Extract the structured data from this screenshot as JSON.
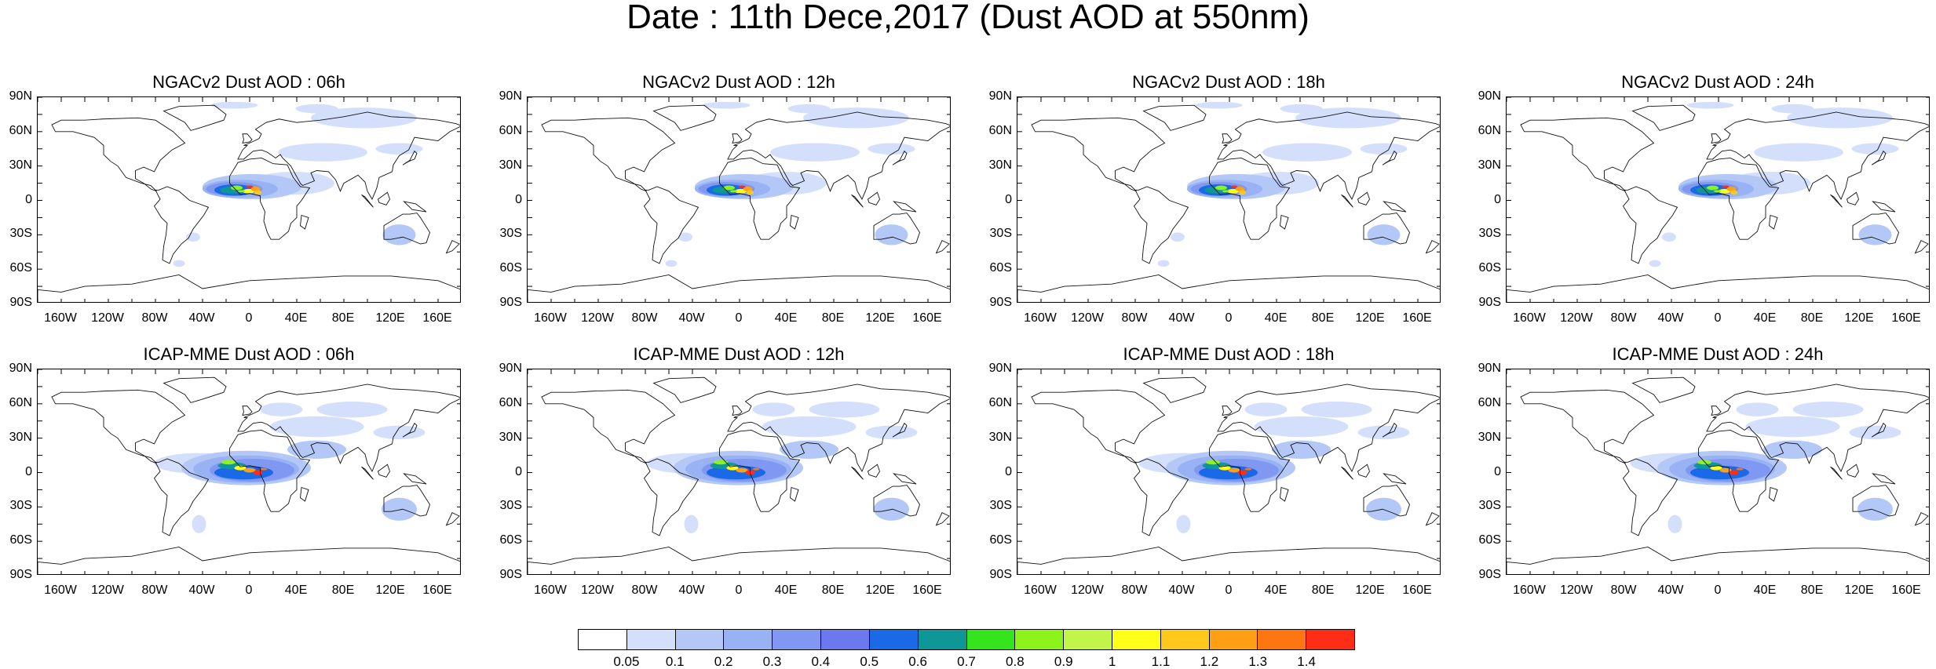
{
  "title": "Date : 11th Dece,2017 (Dust AOD at 550nm)",
  "panels": [
    {
      "title": "NGACv2 Dust AOD : 06h"
    },
    {
      "title": "NGACv2 Dust AOD : 12h"
    },
    {
      "title": "NGACv2 Dust AOD : 18h"
    },
    {
      "title": "NGACv2 Dust AOD : 24h"
    },
    {
      "title": "ICAP-MME Dust AOD : 06h"
    },
    {
      "title": "ICAP-MME Dust AOD : 12h"
    },
    {
      "title": "ICAP-MME Dust AOD : 18h"
    },
    {
      "title": "ICAP-MME Dust AOD : 24h"
    }
  ],
  "lat_labels": [
    "90N",
    "60N",
    "30N",
    "0",
    "30S",
    "60S",
    "90S"
  ],
  "lon_labels": [
    "160W",
    "120W",
    "80W",
    "40W",
    "0",
    "40E",
    "80E",
    "120E",
    "160E"
  ],
  "colorbar": {
    "labels": [
      "0.05",
      "0.1",
      "0.2",
      "0.3",
      "0.4",
      "0.5",
      "0.6",
      "0.7",
      "0.8",
      "0.9",
      "1",
      "1.1",
      "1.2",
      "1.3",
      "1.4"
    ],
    "colors": [
      "#ffffff",
      "#d4e0fb",
      "#b3c8f7",
      "#99b2f4",
      "#8098f1",
      "#6b78ee",
      "#1a6ae8",
      "#0f9696",
      "#34e51d",
      "#8ef31a",
      "#c2f54a",
      "#ffff19",
      "#ffc81a",
      "#ff9f14",
      "#ff7510",
      "#ff2d16"
    ]
  },
  "chart_data": {
    "type": "heatmap",
    "title": "Date : 11th Dece,2017 (Dust AOD at 550nm)",
    "variable": "Dust AOD at 550nm",
    "x_ticks": [
      "160W",
      "120W",
      "80W",
      "40W",
      "0",
      "40E",
      "80E",
      "120E",
      "160E"
    ],
    "y_ticks": [
      "90N",
      "60N",
      "30N",
      "0",
      "30S",
      "60S",
      "90S"
    ],
    "levels": [
      0.05,
      0.1,
      0.2,
      0.3,
      0.4,
      0.5,
      0.6,
      0.7,
      0.8,
      0.9,
      1,
      1.1,
      1.2,
      1.3,
      1.4
    ],
    "panels": [
      "NGACv2 Dust AOD : 06h",
      "NGACv2 Dust AOD : 12h",
      "NGACv2 Dust AOD : 18h",
      "NGACv2 Dust AOD : 24h",
      "ICAP-MME Dust AOD : 06h",
      "ICAP-MME Dust AOD : 12h",
      "ICAP-MME Dust AOD : 18h",
      "ICAP-MME Dust AOD : 24h"
    ]
  }
}
